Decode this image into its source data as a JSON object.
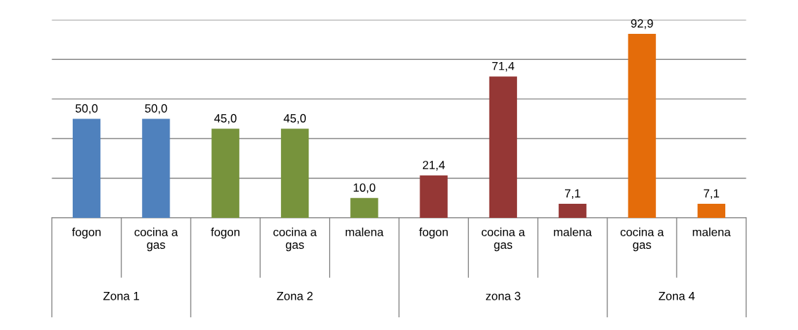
{
  "chart_data": {
    "type": "bar",
    "categories": [
      "fogon",
      "cocina a\ngas",
      "fogon",
      "cocina a\ngas",
      "malena",
      "fogon",
      "cocina a\ngas",
      "malena",
      "cocina a\ngas",
      "malena"
    ],
    "values": [
      50.0,
      50.0,
      45.0,
      45.0,
      10.0,
      21.4,
      71.4,
      7.1,
      92.9,
      7.1
    ],
    "value_labels": [
      "50,0",
      "50,0",
      "45,0",
      "45,0",
      "10,0",
      "21,4",
      "71,4",
      "7,1",
      "92,9",
      "7,1"
    ],
    "colors": [
      "#4f81bd",
      "#4f81bd",
      "#77933c",
      "#77933c",
      "#77933c",
      "#953735",
      "#953735",
      "#953735",
      "#e46c0a",
      "#e46c0a"
    ],
    "annotations": [
      "Zona 1",
      "Zona 2",
      "zona 3",
      "Zona 4"
    ],
    "ylim": [
      0,
      100
    ],
    "yticks": [
      {
        "value": 0,
        "label": null
      },
      {
        "value": 20,
        "label": null
      },
      {
        "value": 40,
        "label": null
      },
      {
        "value": 60,
        "label": null
      },
      {
        "value": 80,
        "label": null
      },
      {
        "value": 100,
        "label": null
      }
    ],
    "grid": "y"
  }
}
